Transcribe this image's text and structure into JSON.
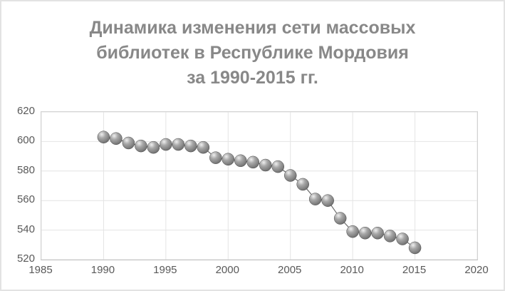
{
  "chart_data": {
    "type": "line",
    "title": "Динамика изменения сети массовых библиотек в Республике Мордовия за 1990-2015 гг.",
    "title_lines": [
      "Динамика изменения сети массовых",
      "библиотек в Республике Мордовия",
      "за 1990-2015 гг."
    ],
    "x": [
      1990,
      1991,
      1992,
      1993,
      1994,
      1995,
      1996,
      1997,
      1998,
      1999,
      2000,
      2001,
      2002,
      2003,
      2004,
      2005,
      2006,
      2007,
      2008,
      2009,
      2010,
      2011,
      2012,
      2013,
      2014,
      2015
    ],
    "values": [
      603,
      602,
      599,
      597,
      596,
      598,
      598,
      597,
      596,
      589,
      588,
      587,
      586,
      584,
      583,
      577,
      571,
      561,
      560,
      548,
      539,
      538,
      538,
      536,
      534,
      528
    ],
    "xlabel": "",
    "ylabel": "",
    "xlim": [
      1985,
      2020
    ],
    "ylim": [
      520,
      620
    ],
    "x_ticks": [
      1985,
      1990,
      1995,
      2000,
      2005,
      2010,
      2015,
      2020
    ],
    "y_ticks": [
      520,
      540,
      560,
      580,
      600,
      620
    ],
    "grid": true,
    "legend": "none",
    "marker_style": "3d-sphere-gray",
    "marker_diameter_px": 17
  },
  "colors": {
    "background": "#ffffff",
    "frame_border": "#e3e3e3",
    "title_text": "#888888",
    "axis_label_text": "#595959",
    "gridline": "#e4e4e4",
    "plot_border": "#d2d2d2",
    "axis_line": "#bfbfbf",
    "series_line": "#6b6b6b",
    "marker_highlight": "#efefef",
    "marker_mid": "#a8a8a8",
    "marker_body": "#7d7d7d",
    "marker_edge": "#4a4a4a"
  }
}
